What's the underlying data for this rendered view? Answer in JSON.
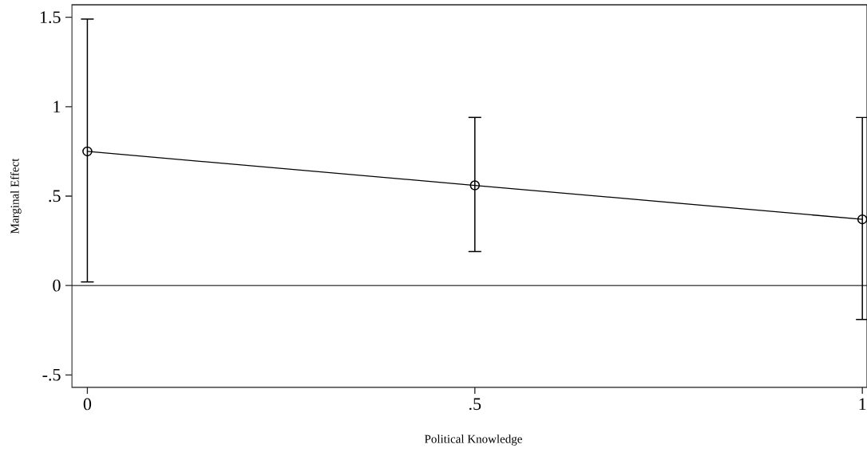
{
  "chart_data": {
    "type": "line",
    "xlabel": "Political Knowledge",
    "ylabel": "Marginal Effect",
    "x": [
      0,
      0.5,
      1
    ],
    "values": [
      0.75,
      0.56,
      0.37
    ],
    "errors": [
      [
        0.02,
        1.49
      ],
      [
        0.19,
        0.94
      ],
      [
        -0.19,
        0.94
      ]
    ],
    "color": "#000000",
    "marker": "circle",
    "xlim": [
      -0.02,
      1.006
    ],
    "ylim": [
      -0.57,
      1.57
    ],
    "xticks": [
      0,
      {
        "value": 0.5,
        "label": ".5"
      },
      1
    ],
    "yticks": [
      {
        "value": -0.5,
        "label": "-.5"
      },
      0,
      {
        "value": 0.5,
        "label": ".5"
      },
      1,
      1.5
    ],
    "ref_lines": [
      {
        "axis": "y",
        "value": 0
      }
    ]
  }
}
